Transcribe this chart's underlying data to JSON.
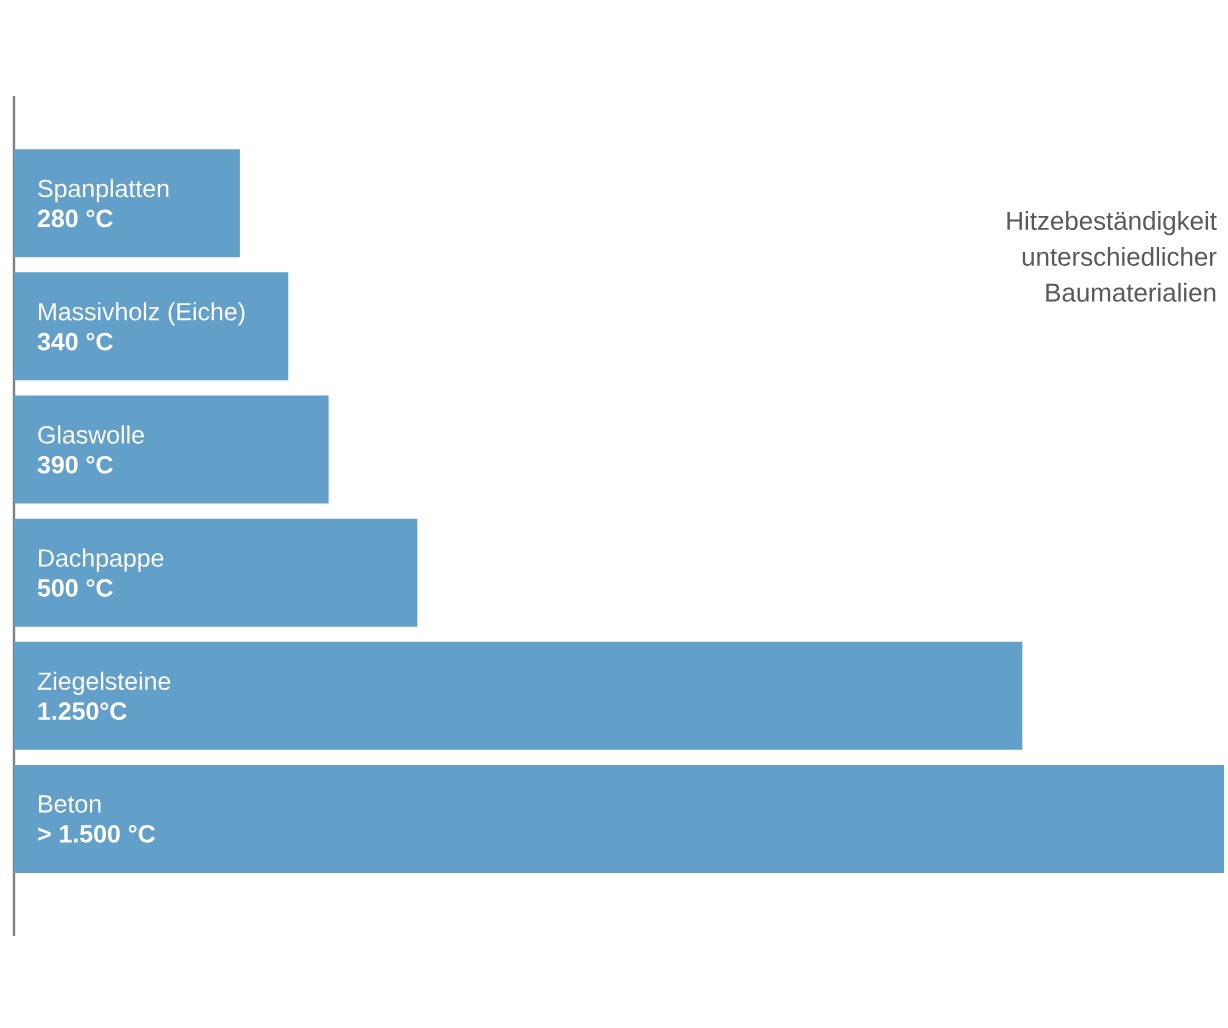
{
  "chart_data": {
    "type": "bar",
    "orientation": "horizontal",
    "title": "Hitzebeständigkeit unterschiedlicher Baumaterialien",
    "categories": [
      "Spanplatten",
      "Massivholz (Eiche)",
      "Glaswolle",
      "Dachpappe",
      "Ziegelsteine",
      "Beton"
    ],
    "values": [
      280,
      340,
      390,
      500,
      1250,
      1500
    ],
    "value_labels": [
      "280 °C",
      "340 °C",
      "390 °C",
      "500 °C",
      "1.250°C",
      "> 1.500 °C"
    ],
    "color": "#629fc9",
    "xlim": [
      0,
      1500
    ]
  }
}
